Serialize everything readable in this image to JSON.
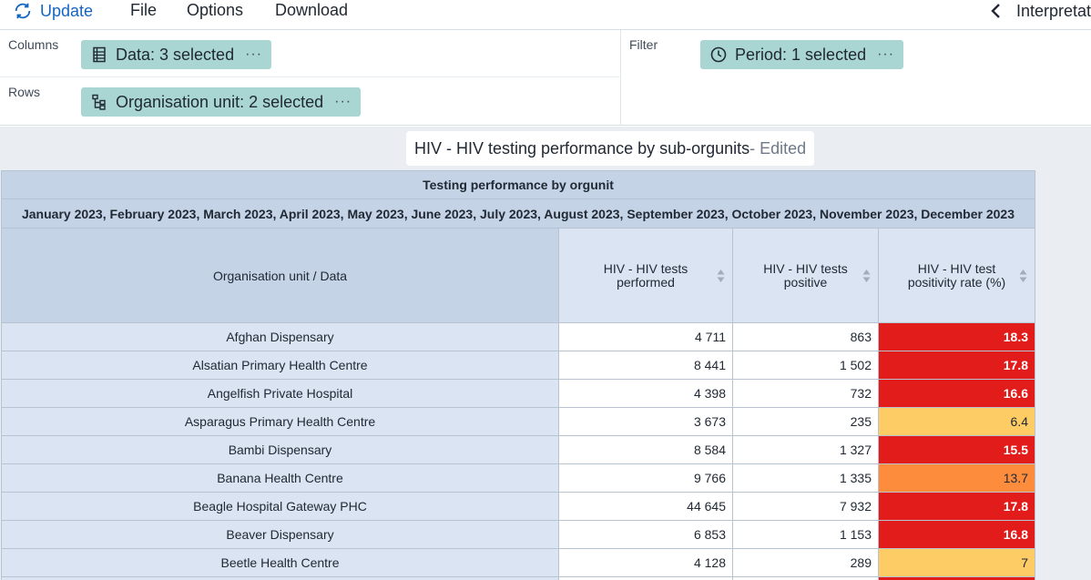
{
  "menubar": {
    "update_label": "Update",
    "file_label": "File",
    "options_label": "Options",
    "download_label": "Download",
    "interpretations_label": "Interpretations"
  },
  "layout": {
    "columns_label": "Columns",
    "rows_label": "Rows",
    "filter_label": "Filter",
    "columns_chip": "Data: 3 selected",
    "rows_chip": "Organisation unit: 2 selected",
    "filter_chip": "Period: 1 selected",
    "chip_menu_glyph": "···"
  },
  "visualization": {
    "title": "HIV - HIV testing performance by sub-orgunits",
    "edited_suffix": " - Edited"
  },
  "table": {
    "main_header": "Testing performance by orgunit",
    "period_header": "January 2023, February 2023, March 2023, April 2023, May 2023, June 2023, July 2023, August 2023, September 2023, October 2023, November 2023, December 2023",
    "corner_header": "Organisation unit / Data",
    "column_headers": [
      "HIV - HIV tests performed",
      "HIV - HIV tests positive",
      "HIV - HIV test positivity rate (%)"
    ],
    "rows": [
      {
        "orgunit": "Afghan Dispensary",
        "performed": "4 711",
        "positive": "863",
        "rate": "18.3",
        "rate_bg": "#e21b1b",
        "rate_fg": "#ffffff",
        "rate_bold": true
      },
      {
        "orgunit": "Alsatian Primary Health Centre",
        "performed": "8 441",
        "positive": "1 502",
        "rate": "17.8",
        "rate_bg": "#e21b1b",
        "rate_fg": "#ffffff",
        "rate_bold": true
      },
      {
        "orgunit": "Angelfish Private Hospital",
        "performed": "4 398",
        "positive": "732",
        "rate": "16.6",
        "rate_bg": "#e21b1b",
        "rate_fg": "#ffffff",
        "rate_bold": true
      },
      {
        "orgunit": "Asparagus Primary Health Centre",
        "performed": "3 673",
        "positive": "235",
        "rate": "6.4",
        "rate_bg": "#fecc65",
        "rate_fg": "#212934",
        "rate_bold": false
      },
      {
        "orgunit": "Bambi Dispensary",
        "performed": "8 584",
        "positive": "1 327",
        "rate": "15.5",
        "rate_bg": "#e21b1b",
        "rate_fg": "#ffffff",
        "rate_bold": true
      },
      {
        "orgunit": "Banana Health Centre",
        "performed": "9 766",
        "positive": "1 335",
        "rate": "13.7",
        "rate_bg": "#fd8c3c",
        "rate_fg": "#212934",
        "rate_bold": false
      },
      {
        "orgunit": "Beagle Hospital Gateway PHC",
        "performed": "44 645",
        "positive": "7 932",
        "rate": "17.8",
        "rate_bg": "#e21b1b",
        "rate_fg": "#ffffff",
        "rate_bold": true
      },
      {
        "orgunit": "Beaver Dispensary",
        "performed": "6 853",
        "positive": "1 153",
        "rate": "16.8",
        "rate_bg": "#e21b1b",
        "rate_fg": "#ffffff",
        "rate_bold": true
      },
      {
        "orgunit": "Beetle Health Centre",
        "performed": "4 128",
        "positive": "289",
        "rate": "7",
        "rate_bg": "#fecc65",
        "rate_fg": "#212934",
        "rate_bold": false
      }
    ]
  },
  "colors": {
    "accent": "#1565c0",
    "chip": "#a9d6d2",
    "header_dark": "#c5d3e6",
    "header_light": "#dae4f2",
    "legend_high": "#e21b1b",
    "legend_mid": "#fd8c3c",
    "legend_low": "#fecc65"
  },
  "icons": {
    "update": "update-icon",
    "back": "chevron-left-icon",
    "data": "data-icon",
    "orgunit": "orgunit-tree-icon",
    "period": "clock-icon",
    "sort": "sort-icon"
  }
}
